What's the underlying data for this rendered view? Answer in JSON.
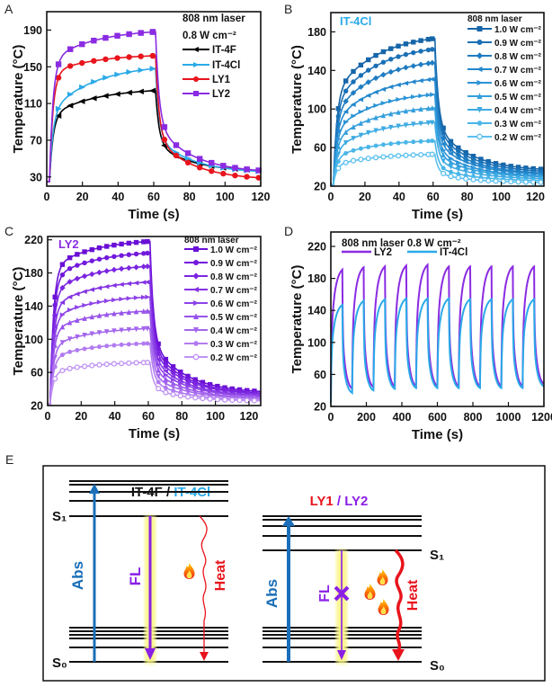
{
  "panel_labels": [
    "A",
    "B",
    "C",
    "D",
    "E"
  ],
  "chart_data": [
    {
      "panel": "A",
      "type": "line",
      "xlabel": "Time (s)",
      "ylabel": "Temperature (°C)",
      "xlim": [
        0,
        120
      ],
      "ylim": [
        20,
        210
      ],
      "xticks": [
        0,
        20,
        40,
        60,
        80,
        100,
        120
      ],
      "yticks": [
        30,
        70,
        110,
        150,
        190
      ],
      "annotation": [
        "808 nm laser",
        "0.8 W cm⁻²"
      ],
      "t_start": 25,
      "laser_off_s": 60,
      "series": [
        {
          "name": "IT-4F",
          "color": "#000000",
          "marker": "triangle-left",
          "T_7s": 98,
          "T_60s": 124,
          "T_120s": 37
        },
        {
          "name": "IT-4Cl",
          "color": "#2aa9e8",
          "marker": "triangle-right",
          "T_7s": 106,
          "T_60s": 148,
          "T_120s": 36
        },
        {
          "name": "LY1",
          "color": "#e8141c",
          "marker": "circle",
          "T_7s": 140,
          "T_60s": 162,
          "T_120s": 29
        },
        {
          "name": "LY2",
          "color": "#8a2be2",
          "marker": "square",
          "T_7s": 155,
          "T_60s": 188,
          "T_120s": 37
        }
      ]
    },
    {
      "panel": "B",
      "type": "line",
      "title": "IT-4Cl",
      "title_color": "#2aa9e8",
      "xlabel": "Time (s)",
      "ylabel": "Temperature (°C)",
      "xlim": [
        0,
        125
      ],
      "ylim": [
        20,
        200
      ],
      "xticks": [
        0,
        20,
        40,
        60,
        80,
        100,
        120
      ],
      "yticks": [
        20,
        60,
        100,
        140,
        180
      ],
      "annotation": [
        "808 nm laser"
      ],
      "t_start": 22,
      "laser_off_s": 60,
      "series": [
        {
          "name": "1.0 W cm⁻²",
          "color": "#1565a8",
          "marker": "square",
          "T_7s": 122,
          "T_60s": 173,
          "T_120s": 38
        },
        {
          "name": "0.9 W cm⁻²",
          "color": "#1a70b5",
          "marker": "circle",
          "T_7s": 112,
          "T_60s": 162,
          "T_120s": 36
        },
        {
          "name": "0.8 W cm⁻²",
          "color": "#1e7cc2",
          "marker": "diamond",
          "T_7s": 102,
          "T_60s": 148,
          "T_120s": 34
        },
        {
          "name": "0.7 W cm⁻²",
          "color": "#2387cd",
          "marker": "triangle-left",
          "T_7s": 92,
          "T_60s": 131,
          "T_120s": 33
        },
        {
          "name": "0.6 W cm⁻²",
          "color": "#2b93d6",
          "marker": "triangle-right",
          "T_7s": 82,
          "T_60s": 115,
          "T_120s": 31
        },
        {
          "name": "0.5 W cm⁻²",
          "color": "#349fdd",
          "marker": "triangle-up",
          "T_7s": 72,
          "T_60s": 101,
          "T_120s": 30
        },
        {
          "name": "0.4 W cm⁻²",
          "color": "#3eaae3",
          "marker": "triangle-down",
          "T_7s": 62,
          "T_60s": 86,
          "T_120s": 28
        },
        {
          "name": "0.3 W cm⁻²",
          "color": "#4ab5e8",
          "marker": "hexagon",
          "T_7s": 52,
          "T_60s": 67,
          "T_120s": 26
        },
        {
          "name": "0.2 W cm⁻²",
          "color": "#5bc0ee",
          "marker": "circle-half",
          "T_7s": 43,
          "T_60s": 53,
          "T_120s": 24
        }
      ]
    },
    {
      "panel": "C",
      "type": "line",
      "title": "LY2",
      "title_color": "#8a2be2",
      "xlabel": "Time (s)",
      "ylabel": "Temperature (°C)",
      "xlim": [
        0,
        127
      ],
      "ylim": [
        20,
        224
      ],
      "xticks": [
        0,
        20,
        40,
        60,
        80,
        100,
        120
      ],
      "yticks": [
        20,
        60,
        100,
        140,
        180,
        220
      ],
      "annotation": [
        "808 nm laser"
      ],
      "t_start": 22,
      "laser_off_s": 60,
      "series": [
        {
          "name": "1.0 W cm⁻²",
          "color": "#6a0fd6",
          "marker": "square",
          "T_7s": 182,
          "T_60s": 218,
          "T_120s": 38
        },
        {
          "name": "0.9 W cm⁻²",
          "color": "#7219dc",
          "marker": "circle",
          "T_7s": 170,
          "T_60s": 204,
          "T_120s": 36
        },
        {
          "name": "0.8 W cm⁻²",
          "color": "#7b25e0",
          "marker": "diamond",
          "T_7s": 155,
          "T_60s": 188,
          "T_120s": 35
        },
        {
          "name": "0.7 W cm⁻²",
          "color": "#8433e4",
          "marker": "triangle-left",
          "T_7s": 138,
          "T_60s": 169,
          "T_120s": 33
        },
        {
          "name": "0.6 W cm⁻²",
          "color": "#8d42e7",
          "marker": "triangle-right",
          "T_7s": 124,
          "T_60s": 151,
          "T_120s": 32
        },
        {
          "name": "0.5 W cm⁻²",
          "color": "#9853ea",
          "marker": "triangle-up",
          "T_7s": 110,
          "T_60s": 134,
          "T_120s": 30
        },
        {
          "name": "0.4 W cm⁻²",
          "color": "#a466ed",
          "marker": "triangle-down",
          "T_7s": 92,
          "T_60s": 113,
          "T_120s": 29
        },
        {
          "name": "0.3 W cm⁻²",
          "color": "#b17bf0",
          "marker": "hexagon",
          "T_7s": 78,
          "T_60s": 95,
          "T_120s": 27
        },
        {
          "name": "0.2 W cm⁻²",
          "color": "#c093f3",
          "marker": "circle-half",
          "T_7s": 60,
          "T_60s": 72,
          "T_120s": 26
        }
      ]
    },
    {
      "panel": "D",
      "type": "line",
      "xlabel": "Time (s)",
      "ylabel": "Temperature (°C)",
      "xlim": [
        0,
        1200
      ],
      "ylim": [
        20,
        238
      ],
      "xticks": [
        0,
        200,
        400,
        600,
        800,
        1000,
        1200
      ],
      "yticks": [
        20,
        60,
        100,
        140,
        180,
        220
      ],
      "annotation": [
        "808 nm laser 0.8 W cm⁻²"
      ],
      "t_start": 25,
      "cycle_period_s": 120,
      "heating_s": 65,
      "series": [
        {
          "name": "LY2",
          "color": "#8a2be2",
          "peaks": [
            191,
            194,
            195,
            196,
            197,
            195,
            195,
            195,
            195,
            195
          ],
          "troughs": [
            42,
            44,
            45,
            45,
            45,
            45,
            45,
            45,
            45,
            48
          ]
        },
        {
          "name": "IT-4Cl",
          "color": "#2aa9e8",
          "peaks": [
            147,
            152,
            154,
            155,
            155,
            155,
            154,
            154,
            154,
            154
          ],
          "troughs": [
            37,
            40,
            42,
            43,
            43,
            43,
            43,
            43,
            43,
            45
          ]
        }
      ]
    }
  ],
  "diagram": {
    "left": {
      "title_a": "IT-4F",
      "title_sep": " / ",
      "title_b": "IT-4Cl",
      "abs": "Abs",
      "fl": "FL",
      "heat": "Heat",
      "s1": "S₁",
      "s0": "S₀"
    },
    "right": {
      "title_a": "LY1",
      "title_sep": " / ",
      "title_b": "LY2",
      "abs": "Abs",
      "fl": "FL",
      "heat": "Heat",
      "s1": "S₁",
      "s0": "S₀"
    },
    "colors": {
      "abs": "#1a6fb8",
      "fl": "#8a1fe6",
      "heat": "#e8141c",
      "glow": "#fbf58a"
    }
  }
}
